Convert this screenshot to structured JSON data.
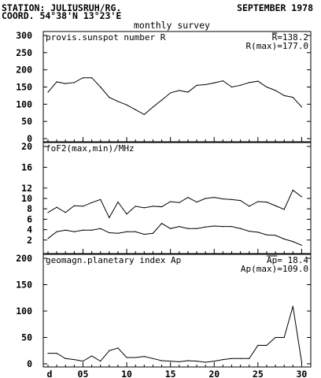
{
  "header": {
    "station": "STATION: JULIUSRUH/RG.",
    "coordinates": "COORD. 54°38'N 13°23'E",
    "month": "SEPTEMBER 1978",
    "survey": "monthly survey"
  },
  "chart_data": [
    {
      "type": "line",
      "title": "provis.sunspot number R",
      "mean_label": "R=138.2",
      "max_label": "R(max)=177.0",
      "ylim": [
        0,
        300
      ],
      "yticks": [
        "0",
        "50",
        "100",
        "150",
        "200",
        "250",
        "300"
      ],
      "x": [
        1,
        2,
        3,
        4,
        5,
        6,
        7,
        8,
        9,
        10,
        11,
        12,
        13,
        14,
        15,
        16,
        17,
        18,
        19,
        20,
        21,
        22,
        23,
        24,
        25,
        26,
        27,
        28,
        29,
        30
      ],
      "series": [
        {
          "values": [
            135,
            165,
            160,
            163,
            177,
            177,
            150,
            120,
            108,
            98,
            84,
            70,
            92,
            112,
            133,
            140,
            135,
            155,
            157,
            162,
            168,
            150,
            155,
            163,
            167,
            150,
            140,
            125,
            120,
            92
          ]
        }
      ]
    },
    {
      "type": "line",
      "title": "foF2(max,min)/MHz",
      "ylim": [
        0,
        20
      ],
      "yticks": [
        "2",
        "4",
        "6",
        "8",
        "10",
        "12",
        "16",
        "20"
      ],
      "ytick_values": [
        2,
        4,
        6,
        8,
        10,
        12,
        16,
        20
      ],
      "x": [
        1,
        2,
        3,
        4,
        5,
        6,
        7,
        8,
        9,
        10,
        11,
        12,
        13,
        14,
        15,
        16,
        17,
        18,
        19,
        20,
        21,
        22,
        23,
        24,
        25,
        26,
        27,
        28,
        29,
        30
      ],
      "series": [
        {
          "values": [
            7.3,
            8.3,
            7.3,
            8.6,
            8.5,
            9.2,
            9.8,
            6.3,
            9.3,
            7.0,
            8.5,
            8.2,
            8.5,
            8.4,
            9.4,
            9.2,
            10.2,
            9.3,
            10.0,
            10.2,
            9.9,
            9.8,
            9.6,
            8.5,
            9.4,
            9.3,
            8.6,
            7.9,
            11.6,
            10.3
          ]
        },
        {
          "values": [
            2.3,
            3.6,
            3.9,
            3.6,
            3.9,
            3.9,
            4.2,
            3.4,
            3.3,
            3.6,
            3.6,
            3.1,
            3.3,
            5.2,
            4.2,
            4.6,
            4.2,
            4.2,
            4.5,
            4.7,
            4.6,
            4.6,
            4.2,
            3.7,
            3.5,
            3.0,
            2.9,
            2.2,
            1.7,
            1.0
          ]
        }
      ]
    },
    {
      "type": "line",
      "title": "geomagn.planetary index Ap",
      "mean_label": "Ap= 18.4",
      "max_label": "Ap(max)=109.0",
      "ylim": [
        0,
        200
      ],
      "yticks": [
        "0",
        "50",
        "100",
        "150",
        "200"
      ],
      "x": [
        1,
        2,
        3,
        4,
        5,
        6,
        7,
        8,
        9,
        10,
        11,
        12,
        13,
        14,
        15,
        16,
        17,
        18,
        19,
        20,
        21,
        22,
        23,
        24,
        25,
        26,
        27,
        28,
        29,
        30
      ],
      "xticks": [
        "d",
        "05",
        "10",
        "15",
        "20",
        "25",
        "30"
      ],
      "series": [
        {
          "values": [
            20,
            20,
            10,
            8,
            5,
            15,
            5,
            25,
            30,
            12,
            12,
            14,
            10,
            6,
            5,
            4,
            6,
            5,
            3,
            5,
            8,
            10,
            10,
            10,
            35,
            35,
            50,
            50,
            109,
            3
          ]
        }
      ]
    }
  ]
}
